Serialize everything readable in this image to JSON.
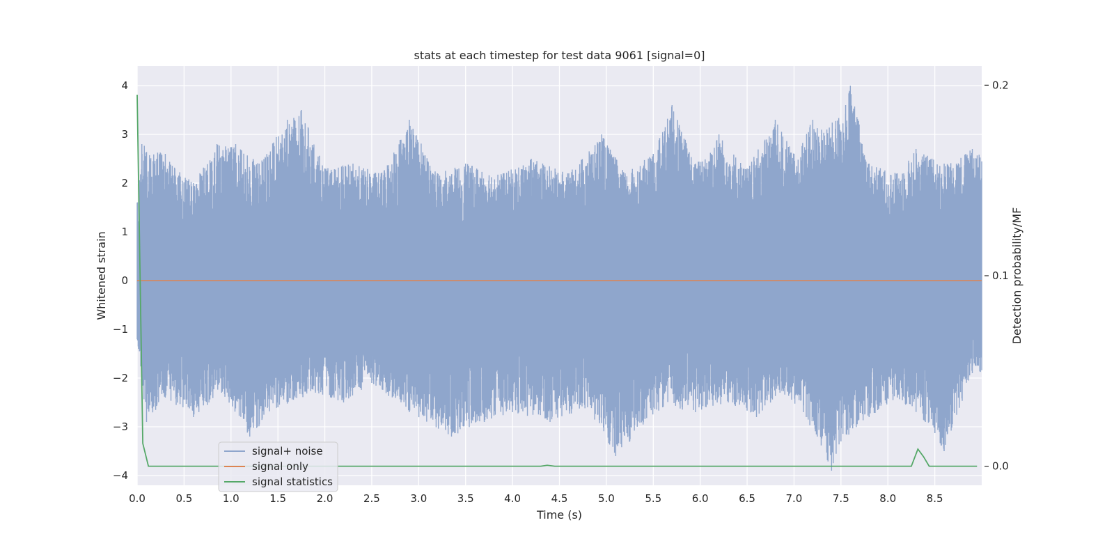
{
  "chart_data": {
    "type": "line",
    "title": "stats at each timestep for test data 9061 [signal=0]",
    "xlabel": "Time (s)",
    "ylabel": "Whitened strain",
    "ylabel_right": "Detection probability/MF",
    "xlim": [
      0,
      9.0
    ],
    "ylim": [
      -4.2,
      4.4
    ],
    "ylim_right": [
      -0.01,
      0.21
    ],
    "x_ticks": [
      "0.0",
      "0.5",
      "1.0",
      "1.5",
      "2.0",
      "2.5",
      "3.0",
      "3.5",
      "4.0",
      "4.5",
      "5.0",
      "5.5",
      "6.0",
      "6.5",
      "7.0",
      "7.5",
      "8.0",
      "8.5"
    ],
    "y_ticks": [
      "−4",
      "−3",
      "−2",
      "−1",
      "0",
      "1",
      "2",
      "3",
      "4"
    ],
    "y_ticks_right": [
      "0.0",
      "0.1",
      "0.2"
    ],
    "grid": true,
    "legend_position": "lower-left",
    "colors": {
      "plot_bg": "#eaeaf2",
      "grid": "#ffffff",
      "noise": "#8fa6cc",
      "signal_only": "#dd8452",
      "statistics": "#55a868",
      "text": "#262626"
    },
    "series": [
      {
        "name": "signal+ noise",
        "axis": "left",
        "description_note": "dense whitened strain noise, amplitude roughly within ±2.5 with peaks near ±4",
        "envelope_top": [
          [
            0.0,
            1.6
          ],
          [
            0.05,
            2.8
          ],
          [
            0.3,
            2.6
          ],
          [
            0.6,
            2.0
          ],
          [
            0.85,
            2.8
          ],
          [
            1.05,
            2.8
          ],
          [
            1.3,
            2.4
          ],
          [
            1.6,
            3.3
          ],
          [
            1.75,
            3.5
          ],
          [
            2.0,
            2.3
          ],
          [
            2.3,
            2.4
          ],
          [
            2.6,
            2.2
          ],
          [
            2.9,
            3.3
          ],
          [
            3.2,
            2.2
          ],
          [
            3.5,
            2.4
          ],
          [
            3.9,
            2.2
          ],
          [
            4.2,
            2.5
          ],
          [
            4.6,
            2.2
          ],
          [
            4.95,
            3.0
          ],
          [
            5.2,
            2.2
          ],
          [
            5.5,
            2.6
          ],
          [
            5.7,
            3.6
          ],
          [
            5.95,
            2.4
          ],
          [
            6.2,
            3.0
          ],
          [
            6.5,
            2.3
          ],
          [
            6.8,
            3.3
          ],
          [
            7.0,
            2.6
          ],
          [
            7.2,
            3.3
          ],
          [
            7.35,
            3.1
          ],
          [
            7.55,
            3.6
          ],
          [
            7.6,
            4.0
          ],
          [
            7.8,
            2.4
          ],
          [
            8.1,
            2.2
          ],
          [
            8.3,
            2.7
          ],
          [
            8.6,
            2.4
          ],
          [
            8.9,
            2.7
          ]
        ],
        "envelope_bottom": [
          [
            0.0,
            -1.2
          ],
          [
            0.1,
            -2.9
          ],
          [
            0.3,
            -2.4
          ],
          [
            0.6,
            -2.8
          ],
          [
            0.9,
            -2.3
          ],
          [
            1.2,
            -3.2
          ],
          [
            1.5,
            -2.6
          ],
          [
            1.9,
            -2.3
          ],
          [
            2.2,
            -2.5
          ],
          [
            2.5,
            -2.1
          ],
          [
            2.9,
            -2.7
          ],
          [
            3.35,
            -3.2
          ],
          [
            3.7,
            -2.9
          ],
          [
            4.0,
            -2.7
          ],
          [
            4.4,
            -2.9
          ],
          [
            4.8,
            -2.6
          ],
          [
            5.1,
            -3.6
          ],
          [
            5.25,
            -3.3
          ],
          [
            5.6,
            -2.6
          ],
          [
            5.95,
            -2.7
          ],
          [
            6.3,
            -2.5
          ],
          [
            6.6,
            -2.8
          ],
          [
            6.85,
            -2.3
          ],
          [
            7.1,
            -2.7
          ],
          [
            7.4,
            -3.9
          ],
          [
            7.5,
            -3.3
          ],
          [
            7.8,
            -2.8
          ],
          [
            8.1,
            -2.4
          ],
          [
            8.4,
            -2.9
          ],
          [
            8.6,
            -3.5
          ],
          [
            8.9,
            -1.9
          ]
        ]
      },
      {
        "name": "signal only",
        "axis": "left",
        "x": [
          0.0,
          9.0
        ],
        "y": [
          0.0,
          0.0
        ]
      },
      {
        "name": "signal statistics",
        "axis": "right",
        "x": [
          0.0,
          0.06,
          0.12,
          0.5,
          1.0,
          2.0,
          3.0,
          4.0,
          4.3,
          4.37,
          4.45,
          5.0,
          6.0,
          7.0,
          8.0,
          8.25,
          8.32,
          8.38,
          8.44,
          8.6,
          8.95
        ],
        "y": [
          0.195,
          0.012,
          0.0,
          0.0,
          0.0,
          0.0,
          0.0,
          0.0,
          0.0,
          0.0005,
          0.0,
          0.0,
          0.0,
          0.0,
          0.0,
          0.0,
          0.009,
          0.005,
          0.0,
          0.0,
          0.0
        ]
      }
    ]
  }
}
